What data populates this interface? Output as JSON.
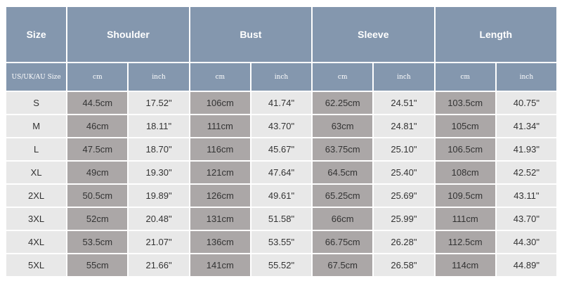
{
  "colors": {
    "header": "#8497ae",
    "cell": "#e8e8e8",
    "cm_cell": "#aba7a7"
  },
  "header": {
    "size": "Size",
    "groups": [
      "Shoulder",
      "Bust",
      "Sleeve",
      "Length"
    ],
    "size_sub": "US/UK/AU Size",
    "cm": "cm",
    "inch": "inch"
  },
  "rows": [
    [
      "S",
      "44.5cm",
      "17.52\"",
      "106cm",
      "41.74\"",
      "62.25cm",
      "24.51\"",
      "103.5cm",
      "40.75\""
    ],
    [
      "M",
      "46cm",
      "18.11\"",
      "111cm",
      "43.70\"",
      "63cm",
      "24.81\"",
      "105cm",
      "41.34\""
    ],
    [
      "L",
      "47.5cm",
      "18.70\"",
      "116cm",
      "45.67\"",
      "63.75cm",
      "25.10\"",
      "106.5cm",
      "41.93\""
    ],
    [
      "XL",
      "49cm",
      "19.30\"",
      "121cm",
      "47.64\"",
      "64.5cm",
      "25.40\"",
      "108cm",
      "42.52\""
    ],
    [
      "2XL",
      "50.5cm",
      "19.89\"",
      "126cm",
      "49.61\"",
      "65.25cm",
      "25.69\"",
      "109.5cm",
      "43.11\""
    ],
    [
      "3XL",
      "52cm",
      "20.48\"",
      "131cm",
      "51.58\"",
      "66cm",
      "25.99\"",
      "111cm",
      "43.70\""
    ],
    [
      "4XL",
      "53.5cm",
      "21.07\"",
      "136cm",
      "53.55\"",
      "66.75cm",
      "26.28\"",
      "112.5cm",
      "44.30\""
    ],
    [
      "5XL",
      "55cm",
      "21.66\"",
      "141cm",
      "55.52\"",
      "67.5cm",
      "26.58\"",
      "114cm",
      "44.89\""
    ]
  ]
}
